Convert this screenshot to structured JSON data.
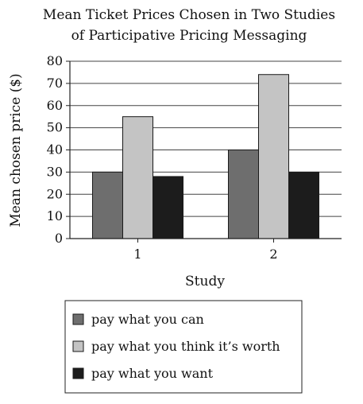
{
  "chart_data": {
    "type": "bar",
    "title": [
      "Mean Ticket Prices Chosen in Two Studies",
      "of Participative Pricing Messaging"
    ],
    "xlabel": "Study",
    "ylabel": "Mean chosen price ($)",
    "categories": [
      "1",
      "2"
    ],
    "ylim": [
      0,
      80
    ],
    "yticks": [
      0,
      10,
      20,
      30,
      40,
      50,
      60,
      70,
      80
    ],
    "grid": true,
    "legend_position": "bottom",
    "series": [
      {
        "name": "pay what you can",
        "color": "#6e6e6e",
        "values": [
          30,
          40
        ]
      },
      {
        "name": "pay what you think it’s worth",
        "color": "#c4c4c4",
        "values": [
          55,
          74
        ]
      },
      {
        "name": "pay what you want",
        "color": "#1c1c1c",
        "values": [
          28,
          30
        ]
      }
    ]
  }
}
